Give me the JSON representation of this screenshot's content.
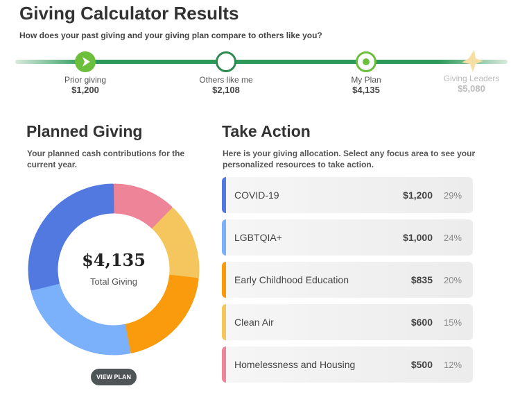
{
  "header": {
    "title": "Giving Calculator Results",
    "subtitle": "How does your past giving and your giving plan compare to others like you?"
  },
  "comparison": [
    {
      "label": "Prior giving",
      "value": "$1,200",
      "icon": "play-icon"
    },
    {
      "label": "Others like me",
      "value": "$2,108",
      "icon": "ring-icon"
    },
    {
      "label": "My Plan",
      "value": "$4,135",
      "icon": "target-icon"
    },
    {
      "label": "Giving Leaders",
      "value": "$5,080",
      "icon": "star-icon"
    }
  ],
  "planned": {
    "title": "Planned Giving",
    "description": "Your planned cash contributions for the current year.",
    "total": "$4,135",
    "total_label": "Total Giving",
    "button": "VIEW PLAN"
  },
  "action": {
    "title": "Take Action",
    "description": "Here is your giving allocation. Select any focus area to see your personalized resources to take action.",
    "items": [
      {
        "name": "COVID-19",
        "amount": "$1,200",
        "percent": "29%",
        "color": "#5179e0"
      },
      {
        "name": "LGBTQIA+",
        "amount": "$1,000",
        "percent": "24%",
        "color": "#7bb0fb"
      },
      {
        "name": "Early Childhood Education",
        "amount": "$835",
        "percent": "20%",
        "color": "#f99b0c"
      },
      {
        "name": "Clean Air",
        "amount": "$600",
        "percent": "15%",
        "color": "#f4c65d"
      },
      {
        "name": "Homelessness and Housing",
        "amount": "$500",
        "percent": "12%",
        "color": "#ee8497"
      }
    ]
  },
  "chart_data": {
    "type": "pie",
    "donut": true,
    "categories": [
      "Homelessness and Housing",
      "Clean Air",
      "Early Childhood Education",
      "LGBTQIA+",
      "COVID-19"
    ],
    "values": [
      500,
      600,
      835,
      1000,
      1200
    ],
    "colors": [
      "#ee8497",
      "#f4c65d",
      "#f99b0c",
      "#7bb0fb",
      "#5179e0"
    ]
  }
}
